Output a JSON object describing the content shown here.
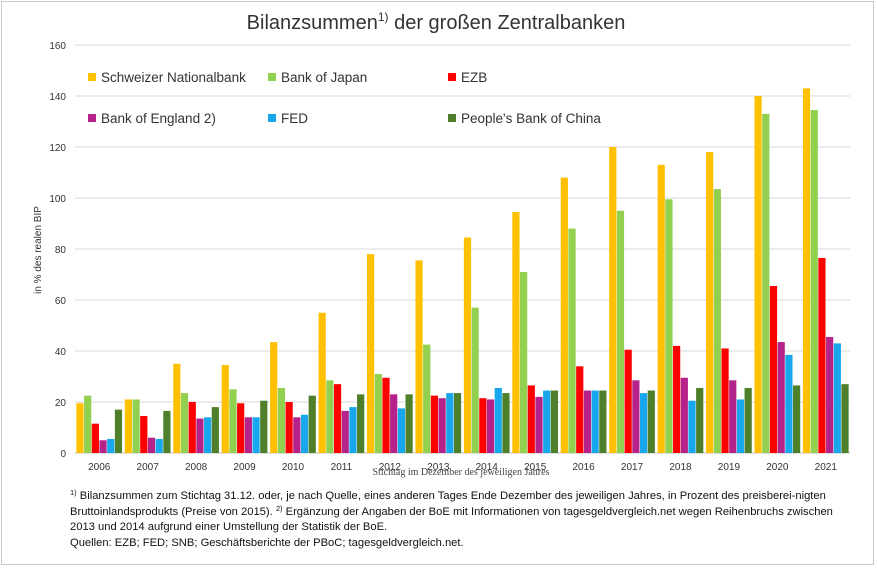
{
  "chart_data": {
    "type": "bar",
    "title": "Bilanzsummen",
    "title_sup": "1)",
    "title_rest": " der großen Zentralbanken",
    "xlabel": "Stichtag im Dezember des jeweiligen Jahres",
    "ylabel": "in % des realen BIP",
    "ylim": [
      0,
      160
    ],
    "yticks": [
      0,
      20,
      40,
      60,
      80,
      100,
      120,
      140,
      160
    ],
    "grid": true,
    "legend_position": "top-left",
    "categories": [
      "2006",
      "2007",
      "2008",
      "2009",
      "2010",
      "2011",
      "2012",
      "2013",
      "2014",
      "2015",
      "2016",
      "2017",
      "2018",
      "2019",
      "2020",
      "2021"
    ],
    "series": [
      {
        "name": "Schweizer Nationalbank",
        "color": "#ffc000",
        "values": [
          19.5,
          21,
          35,
          34.5,
          43.5,
          55,
          78,
          75.5,
          84.5,
          94.5,
          108,
          120,
          113,
          118,
          140,
          143
        ]
      },
      {
        "name": "Bank of Japan",
        "color": "#92d050",
        "values": [
          22.5,
          21,
          23.5,
          25,
          25.5,
          28.5,
          31,
          42.5,
          57,
          71,
          88,
          95,
          99.5,
          103.5,
          133,
          134.5
        ]
      },
      {
        "name": "EZB",
        "color": "#ff0000",
        "values": [
          11.5,
          14.5,
          20,
          19.5,
          20,
          27,
          29.5,
          22.5,
          21.5,
          26.5,
          34,
          40.5,
          42,
          41,
          65.5,
          76.5
        ]
      },
      {
        "name": "Bank of England 2)",
        "color": "#b5238a",
        "values": [
          5,
          6,
          13.5,
          14,
          14,
          16.5,
          23,
          21.5,
          21,
          22,
          24.5,
          28.5,
          29.5,
          28.5,
          43.5,
          45.5
        ]
      },
      {
        "name": "FED",
        "color": "#18a7ec",
        "values": [
          5.5,
          5.5,
          14,
          14,
          15,
          18,
          17.5,
          23.5,
          25.5,
          24.5,
          24.5,
          23.5,
          20.5,
          21,
          38.5,
          43
        ]
      },
      {
        "name": "People's Bank of China",
        "color": "#4e7f2b",
        "values": [
          17,
          16.5,
          18,
          20.5,
          22.5,
          23,
          23,
          23.5,
          23.5,
          24.5,
          24.5,
          24.5,
          25.5,
          25.5,
          26.5,
          27
        ]
      }
    ]
  },
  "footnotes": {
    "note1_mark": "1)",
    "note1_text": " Bilanzsummen zum Stichtag 31.12. oder, je nach Quelle, eines anderen Tages Ende Dezember des jeweiligen Jahres, in Prozent des preisberei-nigten Bruttoinlandsprodukts (Preise von 2015). ",
    "note2_mark": "2)",
    "note2_text": " Ergänzung der Angaben der BoE mit Informationen von tagesgeldvergleich.net wegen Reihenbruchs zwischen 2013 und 2014 aufgrund einer Umstellung der Statistik der BoE.",
    "sources": "Quellen: EZB; FED; SNB; Geschäftsberichte der PBoC; tagesgeldvergleich.net."
  }
}
